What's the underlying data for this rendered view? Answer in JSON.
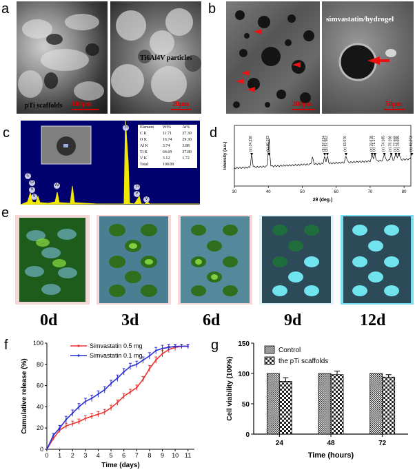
{
  "panels": {
    "a": {
      "label": "a",
      "left_caption": "pTi scaffolds",
      "left_scale": "100μm",
      "right_caption": "Ti6Al4V particles",
      "right_scale": "20μm"
    },
    "b": {
      "label": "b",
      "right_caption": "simvastatin/hydrogel",
      "left_scale": "200μm",
      "right_scale": "50μm"
    },
    "c": {
      "label": "c",
      "table": {
        "headers": [
          "Element",
          "Wt%",
          "At%"
        ],
        "rows": [
          [
            "C K",
            "11.71",
            "27.30"
          ],
          [
            "O K",
            "16.74",
            "29.30"
          ],
          [
            "Al K",
            "3.74",
            "3.88"
          ],
          [
            "Ti K",
            "64.69",
            "37.80"
          ],
          [
            "V K",
            "3.12",
            "1.72"
          ],
          [
            "Total",
            "100.00",
            ""
          ]
        ]
      },
      "peaks": [
        "C",
        "O",
        "V",
        "V",
        "Al",
        "Ti",
        "Ti",
        "V",
        "V"
      ]
    },
    "d": {
      "label": "d"
    },
    "e": {
      "label": "e",
      "days": [
        "0d",
        "3d",
        "6d",
        "9d",
        "12d"
      ]
    },
    "f": {
      "label": "f"
    },
    "g": {
      "label": "g"
    }
  },
  "chart_data": [
    {
      "type": "line",
      "panel": "d",
      "xlabel": "2θ (deg.)",
      "ylabel": "Intensity (a.u.)",
      "xlim": [
        30,
        82
      ],
      "xticks": [
        30,
        40,
        50,
        60,
        70,
        80
      ],
      "peak_labels": [
        {
          "x": 35.1,
          "label": "(α) 34.328"
        },
        {
          "x": 40.2,
          "label": "(α) 40.193"
        },
        {
          "x": 53.0,
          "label": ""
        },
        {
          "x": 56.6,
          "label": "(β) 57.034"
        },
        {
          "x": 57.4,
          "label": "(β) 57.502"
        },
        {
          "x": 62.9,
          "label": "(α) 63.070"
        },
        {
          "x": 70.6,
          "label": "(α) 70.678"
        },
        {
          "x": 71.4,
          "label": "(α) 71.177"
        },
        {
          "x": 74.2,
          "label": "(α) 74.185"
        },
        {
          "x": 76.2,
          "label": "(α) 76.158"
        },
        {
          "x": 77.6,
          "label": "(α) 77.668"
        },
        {
          "x": 78.5,
          "label": "(α) 78.695"
        },
        {
          "x": 82.3,
          "label": "(α) 82.273"
        }
      ]
    },
    {
      "type": "line",
      "panel": "f",
      "xlabel": "Time (days)",
      "ylabel": "Cumulative release (%)",
      "xlim": [
        0,
        11.5
      ],
      "ylim": [
        0,
        100
      ],
      "xticks": [
        0,
        1,
        2,
        3,
        4,
        5,
        6,
        7,
        8,
        9,
        10,
        11
      ],
      "yticks": [
        0,
        20,
        40,
        60,
        80,
        100
      ],
      "series": [
        {
          "name": "Simvastatin 0.5 mg",
          "color": "#e8322e",
          "x": [
            0,
            0.5,
            1,
            1.5,
            2,
            2.5,
            3,
            3.5,
            4,
            4.5,
            5,
            5.5,
            6,
            6.5,
            7,
            7.5,
            8,
            8.5,
            9,
            9.5,
            10,
            10.5,
            11
          ],
          "y": [
            0,
            10,
            18,
            22,
            24,
            26,
            29,
            31,
            33,
            35,
            39,
            44,
            50,
            54,
            58,
            66,
            76,
            84,
            90,
            94,
            96,
            97,
            97
          ],
          "err": [
            0,
            1.5,
            2,
            2.5,
            2.5,
            2.5,
            2.5,
            2.5,
            2.5,
            2.5,
            2.5,
            2.5,
            2.5,
            2.5,
            2.5,
            2.5,
            3,
            3,
            3,
            3,
            3,
            2,
            2
          ]
        },
        {
          "name": "Simvastatin 0.1 mg",
          "color": "#2b2fd2",
          "x": [
            0,
            0.5,
            1,
            1.5,
            2,
            2.5,
            3,
            3.5,
            4,
            4.5,
            5,
            5.5,
            6,
            6.5,
            7,
            7.5,
            8,
            8.5,
            9,
            9.5,
            10,
            10.5,
            11
          ],
          "y": [
            0,
            13,
            20,
            28,
            34,
            40,
            45,
            48,
            52,
            56,
            62,
            67,
            73,
            78,
            80,
            84,
            88,
            93,
            95,
            96,
            97,
            97,
            97
          ],
          "err": [
            0,
            2,
            2.5,
            3,
            3,
            3,
            3,
            3,
            3,
            3,
            3,
            3,
            3,
            3,
            3,
            3,
            3,
            3,
            3,
            3,
            2,
            2,
            2
          ]
        }
      ]
    },
    {
      "type": "bar",
      "panel": "g",
      "xlabel": "Time (hours)",
      "ylabel": "Cell viability (100%)",
      "ylim": [
        0,
        150
      ],
      "yticks": [
        0,
        50,
        100,
        150
      ],
      "categories": [
        "24",
        "48",
        "72"
      ],
      "series": [
        {
          "name": "Control",
          "values": [
            100,
            100,
            100
          ],
          "err": [
            0,
            0,
            0
          ]
        },
        {
          "name": "the pTi scaffolds",
          "values": [
            87,
            98,
            94
          ],
          "err": [
            6,
            6,
            4
          ]
        }
      ]
    }
  ]
}
